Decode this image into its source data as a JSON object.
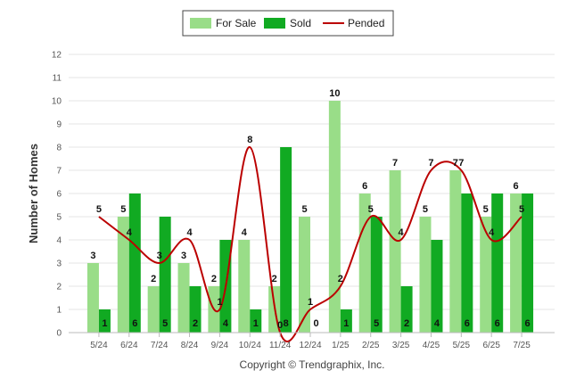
{
  "chart_data": {
    "type": "bar",
    "categories": [
      "5/24",
      "6/24",
      "7/24",
      "8/24",
      "9/24",
      "10/24",
      "11/24",
      "12/24",
      "1/25",
      "2/25",
      "3/25",
      "4/25",
      "5/25",
      "6/25",
      "7/25"
    ],
    "series": [
      {
        "name": "For Sale",
        "type": "bar",
        "color": "#99dd88",
        "values": [
          3,
          5,
          2,
          3,
          2,
          4,
          2,
          5,
          10,
          6,
          7,
          5,
          7,
          5,
          6
        ]
      },
      {
        "name": "Sold",
        "type": "bar",
        "color": "#11aa22",
        "values": [
          1,
          6,
          5,
          2,
          4,
          1,
          8,
          0,
          1,
          5,
          2,
          4,
          6,
          6,
          6
        ]
      },
      {
        "name": "Pended",
        "type": "line",
        "color": "#bb0000",
        "values": [
          5,
          4,
          3,
          4,
          1,
          8,
          0,
          1,
          2,
          5,
          4,
          7,
          7,
          4,
          5
        ]
      }
    ],
    "ylabel": "Number of Homes",
    "ylim": [
      0,
      12
    ],
    "yticks": [
      0,
      1,
      2,
      3,
      4,
      5,
      6,
      7,
      8,
      9,
      10,
      11,
      12
    ],
    "grid": true,
    "legend": "top-center"
  },
  "footer": {
    "copyright": "Copyright © Trendgraphix, Inc."
  }
}
